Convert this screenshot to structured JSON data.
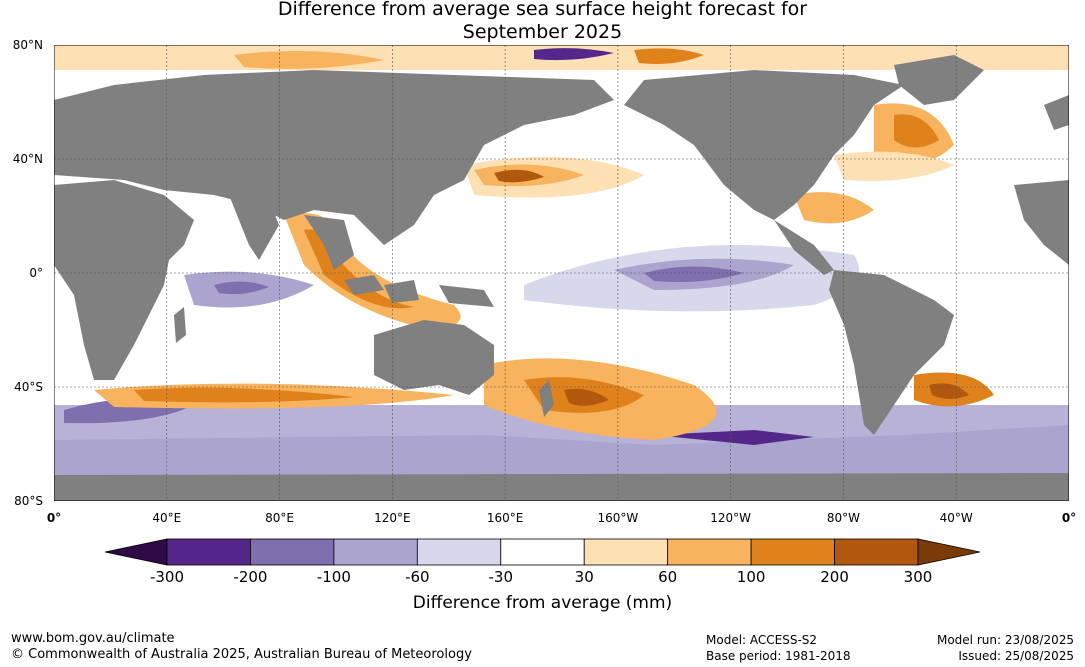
{
  "title": {
    "line1": "Difference from average sea surface height forecast for",
    "line2": "September 2025"
  },
  "axes": {
    "lat_labels": [
      "80°N",
      "40°N",
      "0°",
      "40°S",
      "80°S"
    ],
    "lon_labels": [
      "0°",
      "40°E",
      "80°E",
      "120°E",
      "160°E",
      "160°W",
      "120°W",
      "80°W",
      "40°W",
      "0°"
    ]
  },
  "colorbar": {
    "title": "Difference from average (mm)",
    "ticks": [
      "-300",
      "-200",
      "-100",
      "-60",
      "-30",
      "30",
      "60",
      "100",
      "200",
      "300"
    ],
    "colors": [
      "#2e0a46",
      "#55278a",
      "#7f6fae",
      "#aba4cf",
      "#d8d8ec",
      "#ffffff",
      "#fde0b4",
      "#f8b35e",
      "#e0821c",
      "#b2580e",
      "#7a3a0a"
    ]
  },
  "footer": {
    "website": "www.bom.gov.au/climate",
    "copyright": "© Commonwealth of Australia 2025, Australian Bureau of Meteorology",
    "model": "Model: ACCESS-S2",
    "base_period": "Base period: 1981-2018",
    "model_run": "Model run: 23/08/2025",
    "issued": "Issued: 25/08/2025"
  },
  "map_colors": {
    "land": "#808080",
    "ocean": "#ffffff",
    "grid": "#555555"
  }
}
